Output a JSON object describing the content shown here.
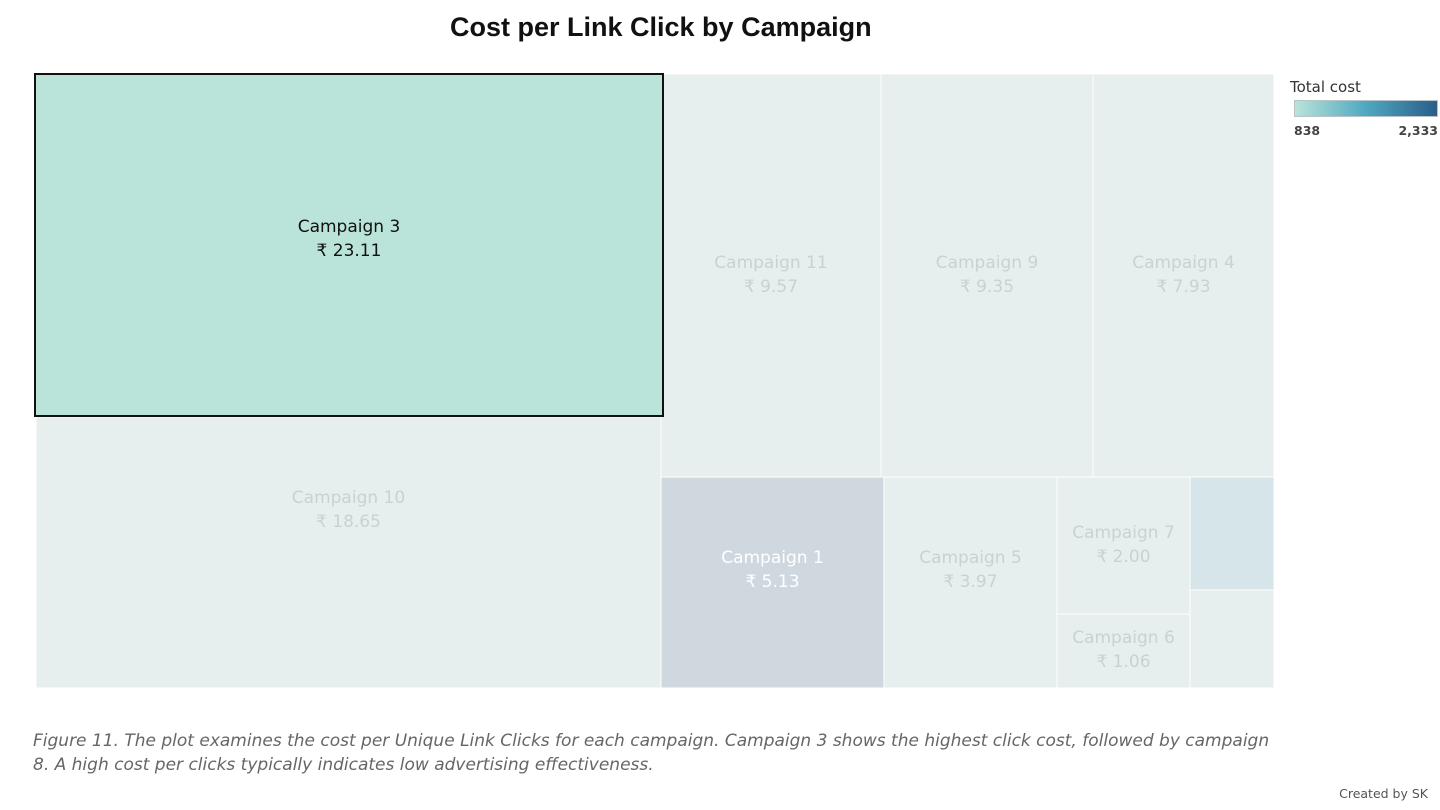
{
  "chart_data": {
    "type": "treemap",
    "title": "Cost per Link Click by Campaign",
    "currency_symbol": "₹",
    "legend": {
      "title": "Total cost",
      "min_label": "838",
      "max_label": "2,333",
      "gradient": [
        "#b9e3d9",
        "#4fa8c0",
        "#2a5e8a"
      ]
    },
    "selected": "Campaign 3",
    "items": [
      {
        "name": "Campaign 3",
        "value_label": "₹ 23.11",
        "cost_per_click": 23.11
      },
      {
        "name": "Campaign 10",
        "value_label": "₹ 18.65",
        "cost_per_click": 18.65
      },
      {
        "name": "Campaign 11",
        "value_label": "₹ 9.57",
        "cost_per_click": 9.57
      },
      {
        "name": "Campaign 9",
        "value_label": "₹ 9.35",
        "cost_per_click": 9.35
      },
      {
        "name": "Campaign 4",
        "value_label": "₹ 7.93",
        "cost_per_click": 7.93
      },
      {
        "name": "Campaign 1",
        "value_label": "₹ 5.13",
        "cost_per_click": 5.13
      },
      {
        "name": "Campaign 5",
        "value_label": "₹ 3.97",
        "cost_per_click": 3.97
      },
      {
        "name": "Campaign 7",
        "value_label": "₹ 2.00",
        "cost_per_click": 2.0
      },
      {
        "name": "Campaign 6",
        "value_label": "₹ 1.06",
        "cost_per_click": 1.06
      },
      {
        "name": "",
        "value_label": "",
        "cost_per_click": null
      },
      {
        "name": "",
        "value_label": "",
        "cost_per_click": null
      }
    ],
    "colors": {
      "selected_fill": "#bae4d9",
      "dimmed_fill": "#e6efed",
      "dimmed_dark_fill": "#d0d8df",
      "dimmed_blue_fill": "#d6e5e9",
      "selected_text": "#111111",
      "dimmed_text": "#c9d2d0",
      "dimmed_dark_text": "#ffffff"
    }
  },
  "caption": "Figure 11. The plot examines the cost per Unique Link Clicks for each campaign. Campaign 3 shows the highest click cost, followed by campaign 8. A high cost per clicks typically indicates low advertising effectiveness.",
  "credit": "Created by SK"
}
